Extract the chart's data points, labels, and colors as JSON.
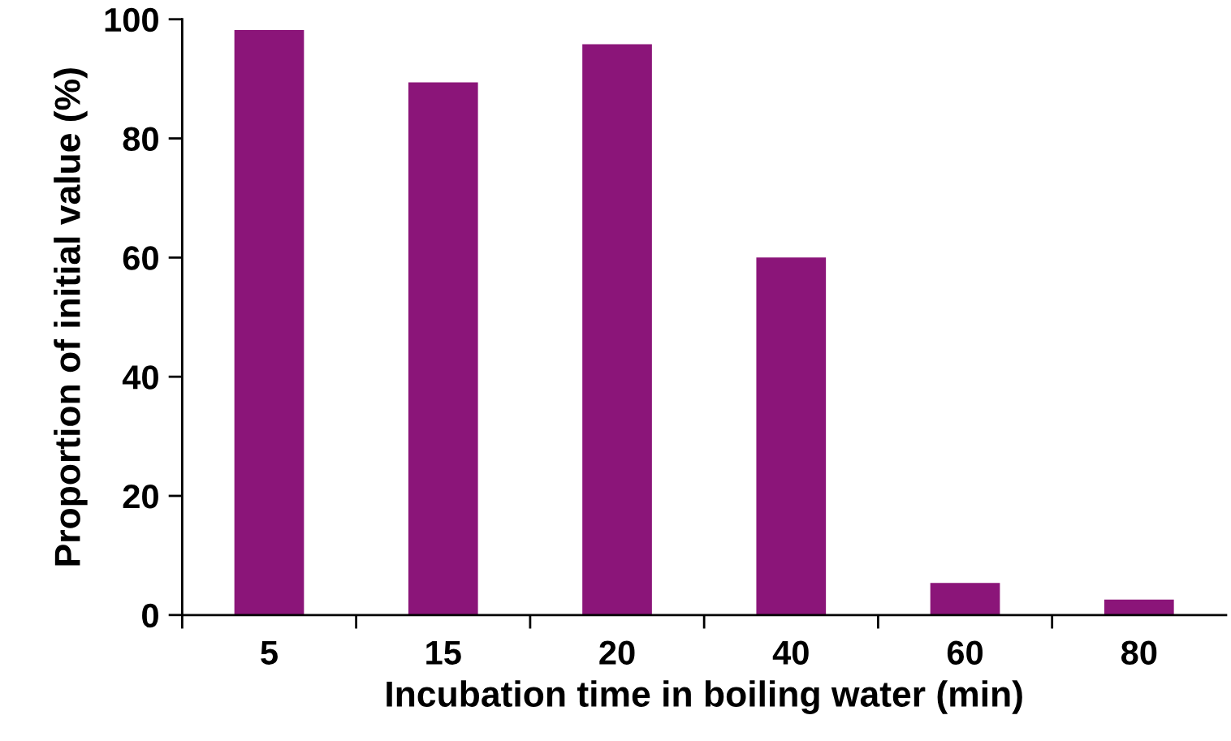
{
  "chart_data": {
    "type": "bar",
    "xlabel": "Incubation time in boiling water (min)",
    "ylabel": "Proportion of initial value (%)",
    "categories": [
      "5",
      "15",
      "20",
      "40",
      "60",
      "80"
    ],
    "values": [
      98.2,
      89.4,
      95.8,
      60,
      5.4,
      2.6
    ],
    "color": "#8b1579",
    "ylim": [
      0,
      100
    ],
    "yticks": [
      0,
      20,
      40,
      60,
      80,
      100
    ],
    "grid": false,
    "legend": false
  }
}
